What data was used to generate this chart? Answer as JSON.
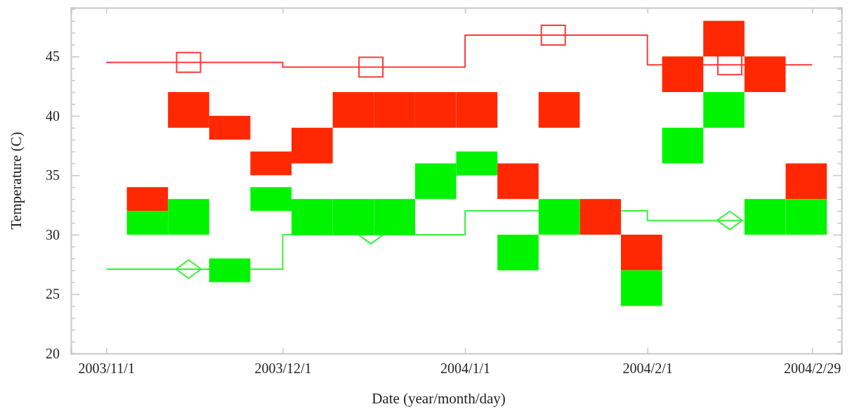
{
  "chart_data": {
    "type": "bar",
    "xlabel": "Date (year/month/day)",
    "ylabel": "Temperature (C)",
    "x": [
      "2003-11-08",
      "2003-11-15",
      "2003-11-22",
      "2003-11-29",
      "2003-12-06",
      "2003-12-13",
      "2003-12-20",
      "2003-12-27",
      "2004-01-03",
      "2004-01-10",
      "2004-01-17",
      "2004-01-24",
      "2004-01-31",
      "2004-02-07",
      "2004-02-14",
      "2004-02-21",
      "2004-02-28"
    ],
    "xlim": [
      "2003-10-26",
      "2004-03-05"
    ],
    "xticks": [
      {
        "value": "2003-11-01",
        "label": "2003/11/1"
      },
      {
        "value": "2003-12-01",
        "label": "2003/12/1"
      },
      {
        "value": "2004-01-01",
        "label": "2004/1/1"
      },
      {
        "value": "2004-02-01",
        "label": "2004/2/1"
      },
      {
        "value": "2004-02-29",
        "label": "2004/2/29"
      }
    ],
    "ylim": [
      20,
      49.1
    ],
    "yticks": [
      20,
      {
        "value": 21,
        "label": null
      },
      {
        "value": 22,
        "label": null
      },
      {
        "value": 23,
        "label": null
      },
      {
        "value": 24,
        "label": null
      },
      25,
      {
        "value": 26,
        "label": null
      },
      {
        "value": 27,
        "label": null
      },
      {
        "value": 28,
        "label": null
      },
      {
        "value": 29,
        "label": null
      },
      30,
      {
        "value": 31,
        "label": null
      },
      {
        "value": 32,
        "label": null
      },
      {
        "value": 33,
        "label": null
      },
      {
        "value": 34,
        "label": null
      },
      35,
      {
        "value": 36,
        "label": null
      },
      {
        "value": 37,
        "label": null
      },
      {
        "value": 38,
        "label": null
      },
      {
        "value": 39,
        "label": null
      },
      40,
      {
        "value": 41,
        "label": null
      },
      {
        "value": 42,
        "label": null
      },
      {
        "value": 43,
        "label": null
      },
      {
        "value": 44,
        "label": null
      },
      45,
      {
        "value": 46,
        "label": null
      },
      {
        "value": 47,
        "label": null
      },
      {
        "value": 48,
        "label": null
      },
      {
        "value": 49,
        "label": null
      }
    ],
    "series": [
      {
        "type": "step",
        "color": "#ff3a3a",
        "x": [
          "2003-11-01",
          "2003-12-01",
          "2004-01-01",
          "2004-02-01",
          "2004-02-29"
        ],
        "values": [
          44.5,
          44.1,
          46.8,
          44.3,
          44.3
        ]
      },
      {
        "type": "step",
        "color": "#3af03a",
        "x": [
          "2003-11-01",
          "2003-12-01",
          "2004-01-01",
          "2004-02-01",
          "2004-02-17"
        ],
        "values": [
          27.1,
          30.0,
          32.0,
          31.2,
          31.2
        ]
      },
      {
        "type": "scatter",
        "marker": "square",
        "color": "#ff3a3a",
        "x": [
          "2003-11-15",
          "2003-12-16",
          "2004-01-16",
          "2004-02-15"
        ],
        "values": [
          44.5,
          44.1,
          46.8,
          44.3
        ]
      },
      {
        "type": "scatter",
        "marker": "diamond",
        "color": "#3af03a",
        "x": [
          "2003-11-15",
          "2003-12-16",
          "2004-01-16",
          "2004-02-15"
        ],
        "values": [
          27.1,
          30.0,
          null,
          31.2
        ]
      },
      {
        "color": "#ff2800",
        "base": [
          32,
          39,
          38,
          35,
          36,
          39,
          39,
          39,
          39,
          33,
          39,
          30,
          27,
          42,
          45,
          42,
          33
        ],
        "values": [
          2,
          3,
          2,
          2,
          3,
          3,
          3,
          3,
          3,
          3,
          3,
          3,
          3,
          3,
          3,
          3,
          3
        ]
      },
      {
        "color": "#00f400",
        "base": [
          30,
          30,
          26,
          32,
          30,
          30,
          30,
          33,
          35,
          27,
          30,
          null,
          24,
          36,
          39,
          30,
          30
        ],
        "values": [
          2,
          3,
          2,
          2,
          3,
          3,
          3,
          3,
          2,
          3,
          3,
          null,
          3,
          3,
          3,
          3,
          3
        ]
      }
    ]
  }
}
